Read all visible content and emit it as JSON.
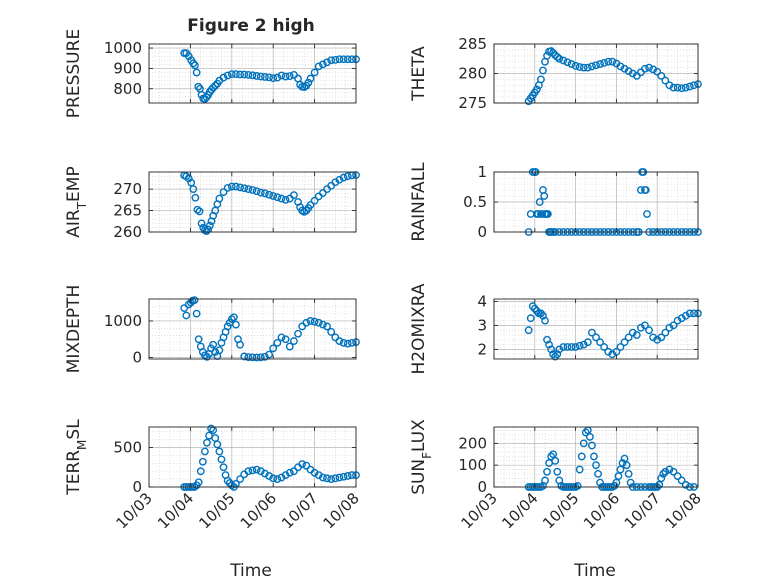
{
  "figure": {
    "title": "Figure 2 high",
    "xlabel": "Time"
  },
  "style": {
    "marker_color": "#0072BD",
    "grid_color": "#cfcfcf",
    "axis_color": "#262626"
  },
  "chart_data": [
    {
      "type": "scatter",
      "ylabel": "PRESSURE",
      "ylim": [
        730,
        1020
      ],
      "yticks": [
        800,
        900,
        1000
      ],
      "xlim": [
        0,
        5
      ],
      "xticks": [
        0,
        1,
        2,
        3,
        4,
        5
      ],
      "xticklabels": [
        "10/03",
        "10/04",
        "10/05",
        "10/06",
        "10/07",
        "10/08"
      ],
      "show_xticklabels": false,
      "x": [
        0.85,
        0.9,
        0.96,
        1.02,
        1.07,
        1.11,
        1.15,
        1.19,
        1.23,
        1.27,
        1.31,
        1.35,
        1.39,
        1.43,
        1.47,
        1.51,
        1.55,
        1.6,
        1.65,
        1.7,
        1.8,
        1.9,
        2.0,
        2.1,
        2.2,
        2.3,
        2.4,
        2.5,
        2.6,
        2.7,
        2.8,
        2.9,
        3.0,
        3.1,
        3.2,
        3.3,
        3.4,
        3.5,
        3.6,
        3.65,
        3.7,
        3.75,
        3.8,
        3.85,
        3.9,
        4.0,
        4.1,
        4.2,
        4.3,
        4.4,
        4.5,
        4.6,
        4.7,
        4.8,
        4.9,
        5.0
      ],
      "y": [
        975,
        975,
        960,
        940,
        925,
        915,
        880,
        810,
        800,
        770,
        752,
        750,
        758,
        770,
        785,
        795,
        805,
        815,
        825,
        840,
        855,
        865,
        872,
        872,
        870,
        870,
        868,
        866,
        863,
        860,
        858,
        856,
        852,
        855,
        865,
        860,
        862,
        868,
        850,
        820,
        810,
        808,
        815,
        830,
        850,
        880,
        910,
        920,
        930,
        940,
        942,
        945,
        945,
        945,
        945,
        945
      ]
    },
    {
      "type": "scatter",
      "ylabel": "THETA",
      "ylim": [
        275,
        285
      ],
      "yticks": [
        275,
        280,
        285
      ],
      "xlim": [
        0,
        5
      ],
      "xticks": [
        0,
        1,
        2,
        3,
        4,
        5
      ],
      "xticklabels": [
        "10/03",
        "10/04",
        "10/05",
        "10/06",
        "10/07",
        "10/08"
      ],
      "show_xticklabels": false,
      "x": [
        0.85,
        0.9,
        0.95,
        1.0,
        1.05,
        1.1,
        1.15,
        1.2,
        1.25,
        1.3,
        1.35,
        1.4,
        1.45,
        1.5,
        1.55,
        1.6,
        1.7,
        1.8,
        1.9,
        2.0,
        2.1,
        2.2,
        2.3,
        2.4,
        2.5,
        2.6,
        2.7,
        2.8,
        2.9,
        3.0,
        3.1,
        3.2,
        3.3,
        3.4,
        3.5,
        3.6,
        3.7,
        3.8,
        3.9,
        4.0,
        4.1,
        4.2,
        4.3,
        4.4,
        4.5,
        4.6,
        4.7,
        4.8,
        4.9,
        5.0
      ],
      "y": [
        275.3,
        275.8,
        276.3,
        276.8,
        277.3,
        278.0,
        279.0,
        280.5,
        282.0,
        283.0,
        283.7,
        283.8,
        283.5,
        283.1,
        282.8,
        282.5,
        282.2,
        281.9,
        281.6,
        281.3,
        281.1,
        281.0,
        281.0,
        281.2,
        281.4,
        281.6,
        281.8,
        282.0,
        282.0,
        281.7,
        281.2,
        280.8,
        280.4,
        280.0,
        279.6,
        280.2,
        280.8,
        281.0,
        280.7,
        280.3,
        279.6,
        278.8,
        278.0,
        277.6,
        277.6,
        277.5,
        277.6,
        277.8,
        278.0,
        278.2
      ]
    },
    {
      "type": "scatter",
      "ylabel": "AIR_TEMP",
      "ylim": [
        260,
        274
      ],
      "yticks": [
        260,
        265,
        270
      ],
      "xlim": [
        0,
        5
      ],
      "xticks": [
        0,
        1,
        2,
        3,
        4,
        5
      ],
      "xticklabels": [
        "10/03",
        "10/04",
        "10/05",
        "10/06",
        "10/07",
        "10/08"
      ],
      "show_xticklabels": false,
      "x": [
        0.85,
        0.9,
        0.96,
        1.02,
        1.07,
        1.12,
        1.17,
        1.22,
        1.27,
        1.31,
        1.35,
        1.39,
        1.43,
        1.47,
        1.51,
        1.55,
        1.6,
        1.65,
        1.7,
        1.8,
        1.9,
        2.0,
        2.1,
        2.2,
        2.3,
        2.4,
        2.5,
        2.6,
        2.7,
        2.8,
        2.9,
        3.0,
        3.1,
        3.2,
        3.3,
        3.4,
        3.5,
        3.6,
        3.65,
        3.7,
        3.75,
        3.8,
        3.85,
        3.9,
        4.0,
        4.1,
        4.2,
        4.3,
        4.4,
        4.5,
        4.6,
        4.7,
        4.8,
        4.9,
        5.0
      ],
      "y": [
        273.2,
        273.0,
        272.5,
        271.5,
        270.0,
        268.0,
        265.2,
        264.8,
        262.0,
        261.0,
        260.4,
        260.2,
        260.6,
        261.5,
        262.5,
        263.8,
        265.0,
        266.5,
        267.8,
        269.3,
        270.3,
        270.6,
        270.6,
        270.4,
        270.2,
        270.0,
        269.8,
        269.5,
        269.2,
        269.0,
        268.7,
        268.4,
        268.1,
        267.8,
        267.5,
        267.8,
        268.6,
        267.0,
        265.8,
        265.0,
        264.7,
        265.0,
        265.6,
        266.3,
        267.3,
        268.3,
        269.1,
        270.0,
        270.8,
        271.6,
        272.2,
        272.7,
        273.0,
        273.2,
        273.3
      ]
    },
    {
      "type": "scatter",
      "ylabel": "RAINFALL",
      "ylim": [
        0,
        1
      ],
      "yticks": [
        0,
        0.5,
        1
      ],
      "xlim": [
        0,
        5
      ],
      "xticks": [
        0,
        1,
        2,
        3,
        4,
        5
      ],
      "xticklabels": [
        "10/03",
        "10/04",
        "10/05",
        "10/06",
        "10/07",
        "10/08"
      ],
      "show_xticklabels": false,
      "x": [
        0.85,
        0.9,
        0.95,
        1.0,
        1.02,
        1.05,
        1.08,
        1.12,
        1.15,
        1.18,
        1.2,
        1.23,
        1.25,
        1.28,
        1.3,
        1.32,
        1.35,
        1.38,
        1.4,
        1.45,
        1.5,
        1.6,
        1.7,
        1.8,
        1.9,
        2.0,
        2.1,
        2.2,
        2.3,
        2.4,
        2.5,
        2.6,
        2.7,
        2.8,
        2.9,
        3.0,
        3.1,
        3.2,
        3.3,
        3.4,
        3.5,
        3.55,
        3.6,
        3.63,
        3.66,
        3.7,
        3.72,
        3.75,
        3.8,
        3.9,
        4.0,
        4.1,
        4.2,
        4.3,
        4.4,
        4.5,
        4.6,
        4.7,
        4.8,
        4.9,
        5.0
      ],
      "y": [
        0.0,
        0.3,
        1.0,
        1.0,
        1.0,
        0.3,
        0.3,
        0.5,
        0.3,
        0.3,
        0.7,
        0.6,
        0.3,
        0.3,
        0.3,
        0.3,
        0.0,
        0.0,
        0.0,
        0.0,
        0.0,
        0.0,
        0.0,
        0.0,
        0.0,
        0.0,
        0.0,
        0.0,
        0.0,
        0.0,
        0.0,
        0.0,
        0.0,
        0.0,
        0.0,
        0.0,
        0.0,
        0.0,
        0.0,
        0.0,
        0.0,
        0.0,
        0.7,
        1.0,
        1.0,
        0.7,
        0.7,
        0.3,
        0.0,
        0.0,
        0.0,
        0.0,
        0.0,
        0.0,
        0.0,
        0.0,
        0.0,
        0.0,
        0.0,
        0.0,
        0.0
      ]
    },
    {
      "type": "scatter",
      "ylabel": "MIXDEPTH",
      "ylim": [
        -40,
        1600
      ],
      "yticks": [
        0,
        1000
      ],
      "xlim": [
        0,
        5
      ],
      "xticks": [
        0,
        1,
        2,
        3,
        4,
        5
      ],
      "xticklabels": [
        "10/03",
        "10/04",
        "10/05",
        "10/06",
        "10/07",
        "10/08"
      ],
      "show_xticklabels": false,
      "x": [
        0.85,
        0.9,
        0.96,
        1.01,
        1.05,
        1.1,
        1.15,
        1.2,
        1.25,
        1.3,
        1.35,
        1.4,
        1.45,
        1.5,
        1.55,
        1.6,
        1.65,
        1.7,
        1.75,
        1.8,
        1.85,
        1.9,
        1.95,
        2.0,
        2.05,
        2.1,
        2.15,
        2.2,
        2.3,
        2.4,
        2.5,
        2.6,
        2.7,
        2.8,
        2.9,
        3.0,
        3.1,
        3.2,
        3.3,
        3.4,
        3.5,
        3.6,
        3.7,
        3.8,
        3.9,
        4.0,
        4.1,
        4.2,
        4.3,
        4.4,
        4.5,
        4.6,
        4.7,
        4.8,
        4.9,
        5.0
      ],
      "y": [
        1350,
        1150,
        1450,
        1500,
        1550,
        1570,
        1200,
        500,
        300,
        150,
        60,
        20,
        100,
        250,
        350,
        150,
        40,
        200,
        400,
        550,
        700,
        850,
        950,
        1050,
        1100,
        900,
        500,
        350,
        30,
        10,
        5,
        0,
        5,
        20,
        80,
        250,
        400,
        550,
        500,
        300,
        450,
        650,
        850,
        950,
        1000,
        980,
        950,
        900,
        850,
        700,
        550,
        450,
        400,
        380,
        400,
        420
      ]
    },
    {
      "type": "scatter",
      "ylabel": "H2OMIXRA",
      "ylim": [
        1.6,
        4.1
      ],
      "yticks": [
        2,
        3,
        4
      ],
      "xlim": [
        0,
        5
      ],
      "xticks": [
        0,
        1,
        2,
        3,
        4,
        5
      ],
      "xticklabels": [
        "10/03",
        "10/04",
        "10/05",
        "10/06",
        "10/07",
        "10/08"
      ],
      "show_xticklabels": false,
      "x": [
        0.85,
        0.9,
        0.95,
        1.0,
        1.05,
        1.1,
        1.15,
        1.2,
        1.25,
        1.3,
        1.35,
        1.4,
        1.45,
        1.5,
        1.55,
        1.6,
        1.7,
        1.8,
        1.9,
        2.0,
        2.1,
        2.2,
        2.3,
        2.4,
        2.5,
        2.6,
        2.7,
        2.8,
        2.9,
        3.0,
        3.1,
        3.2,
        3.3,
        3.4,
        3.5,
        3.6,
        3.7,
        3.8,
        3.9,
        4.0,
        4.1,
        4.2,
        4.3,
        4.4,
        4.5,
        4.6,
        4.7,
        4.8,
        4.9,
        5.0
      ],
      "y": [
        2.8,
        3.3,
        3.8,
        3.7,
        3.6,
        3.5,
        3.5,
        3.4,
        3.2,
        2.4,
        2.2,
        2.0,
        1.8,
        1.7,
        1.8,
        2.0,
        2.1,
        2.1,
        2.1,
        2.1,
        2.15,
        2.2,
        2.3,
        2.7,
        2.5,
        2.3,
        2.1,
        1.9,
        1.8,
        1.9,
        2.1,
        2.3,
        2.5,
        2.7,
        2.6,
        2.9,
        3.0,
        2.8,
        2.5,
        2.4,
        2.5,
        2.7,
        2.9,
        3.0,
        3.2,
        3.3,
        3.4,
        3.5,
        3.5,
        3.5
      ]
    },
    {
      "type": "scatter",
      "ylabel": "TERR_MSL",
      "ylim": [
        0,
        760
      ],
      "yticks": [
        0,
        500
      ],
      "xlim": [
        0,
        5
      ],
      "xticks": [
        0,
        1,
        2,
        3,
        4,
        5
      ],
      "xticklabels": [
        "10/03",
        "10/04",
        "10/05",
        "10/06",
        "10/07",
        "10/08"
      ],
      "show_xticklabels": true,
      "x": [
        0.85,
        0.9,
        0.95,
        1.0,
        1.05,
        1.1,
        1.15,
        1.2,
        1.25,
        1.3,
        1.35,
        1.4,
        1.45,
        1.5,
        1.55,
        1.6,
        1.65,
        1.7,
        1.75,
        1.8,
        1.85,
        1.9,
        1.95,
        2.0,
        2.05,
        2.1,
        2.2,
        2.3,
        2.4,
        2.5,
        2.6,
        2.7,
        2.8,
        2.9,
        3.0,
        3.1,
        3.2,
        3.3,
        3.4,
        3.5,
        3.6,
        3.7,
        3.8,
        3.9,
        4.0,
        4.1,
        4.2,
        4.3,
        4.4,
        4.5,
        4.6,
        4.7,
        4.8,
        4.9,
        5.0
      ],
      "y": [
        0,
        0,
        0,
        0,
        0,
        0,
        20,
        60,
        200,
        320,
        450,
        560,
        650,
        740,
        720,
        620,
        540,
        450,
        350,
        250,
        150,
        80,
        50,
        20,
        0,
        40,
        100,
        160,
        200,
        210,
        220,
        200,
        170,
        140,
        110,
        100,
        120,
        150,
        180,
        200,
        250,
        290,
        270,
        220,
        180,
        150,
        120,
        110,
        100,
        110,
        120,
        130,
        140,
        150,
        150
      ]
    },
    {
      "type": "scatter",
      "ylabel": "SUN_FLUX",
      "ylim": [
        0,
        275
      ],
      "yticks": [
        0,
        100,
        200
      ],
      "xlim": [
        0,
        5
      ],
      "xticks": [
        0,
        1,
        2,
        3,
        4,
        5
      ],
      "xticklabels": [
        "10/03",
        "10/04",
        "10/05",
        "10/06",
        "10/07",
        "10/08"
      ],
      "show_xticklabels": true,
      "x": [
        0.85,
        0.9,
        0.95,
        1.0,
        1.05,
        1.1,
        1.15,
        1.2,
        1.25,
        1.3,
        1.35,
        1.4,
        1.45,
        1.5,
        1.55,
        1.6,
        1.65,
        1.7,
        1.75,
        1.8,
        1.85,
        1.9,
        1.95,
        2.0,
        2.05,
        2.1,
        2.15,
        2.2,
        2.25,
        2.3,
        2.35,
        2.4,
        2.45,
        2.5,
        2.55,
        2.6,
        2.65,
        2.7,
        2.75,
        2.8,
        2.85,
        2.9,
        2.95,
        3.0,
        3.05,
        3.1,
        3.15,
        3.2,
        3.25,
        3.3,
        3.35,
        3.4,
        3.5,
        3.6,
        3.7,
        3.8,
        3.85,
        3.9,
        3.95,
        4.0,
        4.05,
        4.1,
        4.15,
        4.2,
        4.3,
        4.4,
        4.5,
        4.6,
        4.7,
        4.8,
        4.9
      ],
      "y": [
        0,
        0,
        0,
        0,
        0,
        0,
        0,
        5,
        30,
        70,
        110,
        140,
        150,
        120,
        70,
        30,
        5,
        0,
        0,
        0,
        0,
        0,
        0,
        0,
        5,
        80,
        140,
        200,
        250,
        260,
        230,
        190,
        140,
        100,
        60,
        20,
        0,
        0,
        0,
        0,
        0,
        0,
        5,
        20,
        50,
        80,
        110,
        130,
        100,
        60,
        20,
        0,
        0,
        0,
        0,
        0,
        0,
        0,
        0,
        0,
        10,
        40,
        60,
        70,
        80,
        70,
        50,
        30,
        10,
        0,
        0
      ]
    }
  ]
}
